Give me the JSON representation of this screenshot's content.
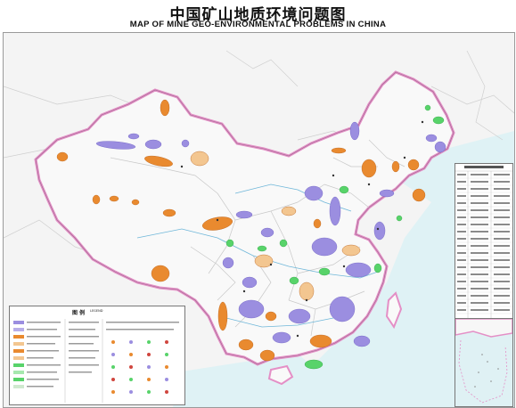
{
  "title": {
    "chinese": "中国矿山地质环境问题图",
    "english": "MAP OF MINE GEO-ENVIRONMENTAL PROBLEMS IN CHINA"
  },
  "legend": {
    "title_cn": "图 例",
    "title_en": "LEGEND"
  },
  "colors": {
    "sea": "#dff2f5",
    "land": "#f7f7f7",
    "border": "#e48fc6",
    "orange": "#e98a2f",
    "purple": "#9b8ee0",
    "green": "#58d36a",
    "gray_line": "#c9c9c9"
  }
}
